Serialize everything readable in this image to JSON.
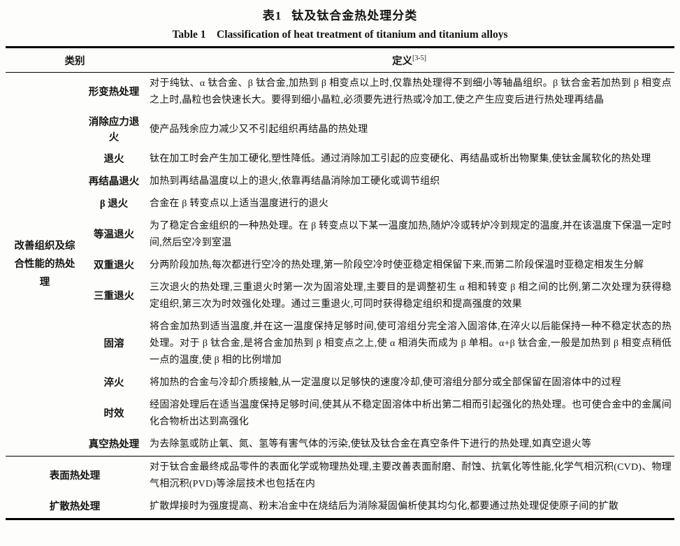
{
  "title": {
    "zh_no": "表1",
    "zh": "钛及钛合金热处理分类",
    "en": "Table 1　Classification of heat treatment of titanium and titanium alloys"
  },
  "table": {
    "header": {
      "category": "类别",
      "definition": "定义",
      "definition_ref": "[3-5]"
    },
    "group_label": "改善组织及综合性能的热处理",
    "rows": [
      {
        "label": "形变热处理",
        "definition": "对于纯钛、α 钛合金、β 钛合金,加热到 β 相变点以上时,仅靠热处理得不到细小等轴晶组织。β 钛合金若加热到 β 相变点之上时,晶粒也会快速长大。要得到细小晶粒,必须要先进行热或冷加工,使之产生应变后进行热处理再结晶"
      },
      {
        "label": "消除应力退火",
        "definition": "使产品残余应力减少又不引起组织再结晶的热处理"
      },
      {
        "label": "退火",
        "definition": "钛在加工时会产生加工硬化,塑性降低。通过消除加工引起的应变硬化、再结晶或析出物聚集,使钛金属软化的热处理"
      },
      {
        "label": "再结晶退火",
        "definition": "加热到再结晶温度以上的退火,依靠再结晶消除加工硬化或调节组织"
      },
      {
        "label": "β 退火",
        "definition": "合金在 β 转变点以上适当温度进行的退火"
      },
      {
        "label": "等温退火",
        "definition": "为了稳定合金组织的一种热处理。在 β 转变点以下某一温度加热,随炉冷或转炉冷到规定的温度,并在该温度下保温一定时间,然后空冷到室温"
      },
      {
        "label": "双重退火",
        "definition": "分两阶段加热,每次都进行空冷的热处理,第一阶段空冷时使亚稳定相保留下来,而第二阶段保温时亚稳定相发生分解"
      },
      {
        "label": "三重退火",
        "definition": "三次退火的热处理,三重退火时第一次为固溶处理,主要目的是调整初生 α 相和转变 β 相之间的比例,第二次处理为获得稳定组织,第三次为时效强化处理。通过三重退火,可同时获得稳定组织和提高强度的效果"
      },
      {
        "label": "固溶",
        "definition": "将合金加热到适当温度,并在这一温度保持足够时间,使可溶组分完全溶入固溶体,在淬火以后能保持一种不稳定状态的热处理。对于 β 钛合金,是将合金加热到 β 相变点之上,使 α 相消失而成为 β 单相。α+β 钛合金,一般是加热到 β 相变点稍低一点的温度,使 β 相的比例增加"
      },
      {
        "label": "淬火",
        "definition": "将加热的合金与冷却介质接触,从一定温度以足够快的速度冷却,使可溶组分部分或全部保留在固溶体中的过程"
      },
      {
        "label": "时效",
        "definition": "经固溶处理后在适当温度保持足够时间,使其从不稳定固溶体中析出第二相而引起强化的热处理。也可使合金中的金属间化合物析出达到高强化"
      },
      {
        "label": "真空热处理",
        "definition": "为去除氢或防止氧、氮、氢等有害气体的污染,使钛及钛合金在真空条件下进行的热处理,如真空退火等"
      }
    ],
    "bottom_rows": [
      {
        "label": "表面热处理",
        "definition": "对于钛合金最终成品零件的表面化学或物理热处理,主要改善表面耐磨、耐蚀、抗氧化等性能,化学气相沉积(CVD)、物理气相沉积(PVD)等涂层技术也包括在内"
      },
      {
        "label": "扩散热处理",
        "definition": "扩散焊接时为强度提高、粉末冶金中在烧结后为消除凝固偏析使其均匀化,都要通过热处理促使原子间的扩散"
      }
    ]
  }
}
